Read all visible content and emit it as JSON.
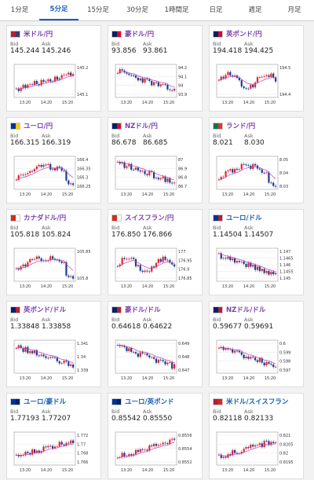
{
  "tabs": [
    {
      "label": "1分足",
      "active": false
    },
    {
      "label": "5分足",
      "active": true
    },
    {
      "label": "15分足",
      "active": false
    },
    {
      "label": "30分足",
      "active": false
    },
    {
      "label": "1時間足",
      "active": false
    },
    {
      "label": "日足",
      "active": false
    },
    {
      "label": "週足",
      "active": false
    },
    {
      "label": "月足",
      "active": false
    }
  ],
  "labels": {
    "bid": "Bid",
    "ask": "Ask"
  },
  "x_ticks": [
    "13:20",
    "14:20",
    "15:20"
  ],
  "colors": {
    "up": "#e0262b",
    "down": "#1a3c8f",
    "ma": "#c040c0",
    "text_purple": "#7a3fb0",
    "text_blue": "#1a5fb4"
  },
  "pairs": [
    {
      "name": "米ドル/円",
      "flag": [
        "#b22234",
        "#3c3b6e"
      ],
      "bid": "145.244",
      "ask": "145.246",
      "ticks": [
        "145.2",
        "145.1"
      ],
      "trend": "up",
      "blue": false
    },
    {
      "name": "豪ドル/円",
      "flag": [
        "#012169",
        "#e4002b"
      ],
      "bid": "93.856",
      "ask": "93.861",
      "ticks": [
        "94.2",
        "94.1",
        "94",
        "93.9"
      ],
      "trend": "down",
      "blue": false
    },
    {
      "name": "英ポンド/円",
      "flag": [
        "#012169",
        "#c8102e"
      ],
      "bid": "194.418",
      "ask": "194.425",
      "ticks": [
        "194.5",
        "194.4"
      ],
      "trend": "wave",
      "blue": false
    },
    {
      "name": "ユーロ/円",
      "flag": [
        "#003399",
        "#ffcc00"
      ],
      "bid": "166.315",
      "ask": "166.319",
      "ticks": [
        "166.4",
        "166.35",
        "166.3",
        "166.25"
      ],
      "trend": "updown",
      "blue": false
    },
    {
      "name": "NZドル/円",
      "flag": [
        "#012169",
        "#cc142b"
      ],
      "bid": "86.678",
      "ask": "86.685",
      "ticks": [
        "87",
        "86.9",
        "86.8",
        "86.7"
      ],
      "trend": "down",
      "blue": false
    },
    {
      "name": "ランド/円",
      "flag": [
        "#007a4d",
        "#de3831"
      ],
      "bid": "8.021",
      "ask": "8.030",
      "ticks": [
        "8.05",
        "8.04",
        "8.03"
      ],
      "trend": "updown",
      "blue": false
    },
    {
      "name": "カナダドル/円",
      "flag": [
        "#d52b1e",
        "#ffffff"
      ],
      "bid": "105.818",
      "ask": "105.824",
      "ticks": [
        "105.85",
        "105.8"
      ],
      "trend": "updown",
      "blue": false
    },
    {
      "name": "スイスフラン/円",
      "flag": [
        "#d52b1e",
        "#ffffff"
      ],
      "bid": "176.850",
      "ask": "176.866",
      "ticks": [
        "177",
        "176.95",
        "176.9",
        "176.85"
      ],
      "trend": "wave",
      "blue": false
    },
    {
      "name": "ユーロ/ドル",
      "flag": [
        "#003399",
        "#b22234"
      ],
      "bid": "1.14504",
      "ask": "1.14507",
      "ticks": [
        "1.147",
        "1.1465",
        "1.146",
        "1.1455",
        "1.145"
      ],
      "trend": "down",
      "blue": true
    },
    {
      "name": "英ポンド/ドル",
      "flag": [
        "#012169",
        "#b22234"
      ],
      "bid": "1.33848",
      "ask": "1.33858",
      "ticks": [
        "1.341",
        "1.34",
        "1.339"
      ],
      "trend": "down",
      "blue": false
    },
    {
      "name": "豪ドル/ドル",
      "flag": [
        "#012169",
        "#b22234"
      ],
      "bid": "0.64618",
      "ask": "0.64622",
      "ticks": [
        "0.649",
        "0.648",
        "0.647"
      ],
      "trend": "down",
      "blue": false
    },
    {
      "name": "NZドル/ドル",
      "flag": [
        "#012169",
        "#b22234"
      ],
      "bid": "0.59677",
      "ask": "0.59691",
      "ticks": [
        "0.6",
        "0.599",
        "0.598",
        "0.597"
      ],
      "trend": "down",
      "blue": false
    },
    {
      "name": "ユーロ/豪ドル",
      "flag": [
        "#003399",
        "#012169"
      ],
      "bid": "1.77193",
      "ask": "1.77207",
      "ticks": [
        "1.772",
        "1.77",
        "1.768",
        "1.766"
      ],
      "trend": "up",
      "blue": true
    },
    {
      "name": "ユーロ/英ポンド",
      "flag": [
        "#003399",
        "#012169"
      ],
      "bid": "0.85542",
      "ask": "0.85550",
      "ticks": [
        "0.8556",
        "0.8554",
        "0.8552"
      ],
      "trend": "up",
      "blue": true
    },
    {
      "name": "米ドル/スイスフラン",
      "flag": [
        "#b22234",
        "#d52b1e"
      ],
      "bid": "0.82118",
      "ask": "0.82133",
      "ticks": [
        "0.821",
        "0.8205",
        "0.82",
        "0.8195"
      ],
      "trend": "up",
      "blue": true
    }
  ]
}
